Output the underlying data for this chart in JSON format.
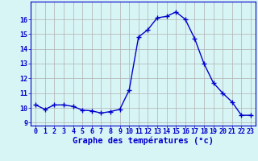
{
  "hours": [
    0,
    1,
    2,
    3,
    4,
    5,
    6,
    7,
    8,
    9,
    10,
    11,
    12,
    13,
    14,
    15,
    16,
    17,
    18,
    19,
    20,
    21,
    22,
    23
  ],
  "temps": [
    10.2,
    9.9,
    10.2,
    10.2,
    10.1,
    9.85,
    9.8,
    9.65,
    9.75,
    9.9,
    11.2,
    14.8,
    15.3,
    16.1,
    16.2,
    16.5,
    16.0,
    14.7,
    13.0,
    11.7,
    11.0,
    10.4,
    9.5,
    9.5
  ],
  "line_color": "#0000cc",
  "marker": "+",
  "marker_size": 4,
  "bg_color": "#d8f5f5",
  "grid_color": "#b0b0b0",
  "xlabel": "Graphe des températures (°c)",
  "ylabel_ticks": [
    9,
    10,
    11,
    12,
    13,
    14,
    15,
    16
  ],
  "xlim": [
    -0.5,
    23.5
  ],
  "ylim": [
    8.8,
    17.2
  ],
  "axis_color": "#0000cc",
  "tick_label_color": "#0000cc",
  "xlabel_fontsize": 7.5,
  "tick_fontsize": 6.0
}
